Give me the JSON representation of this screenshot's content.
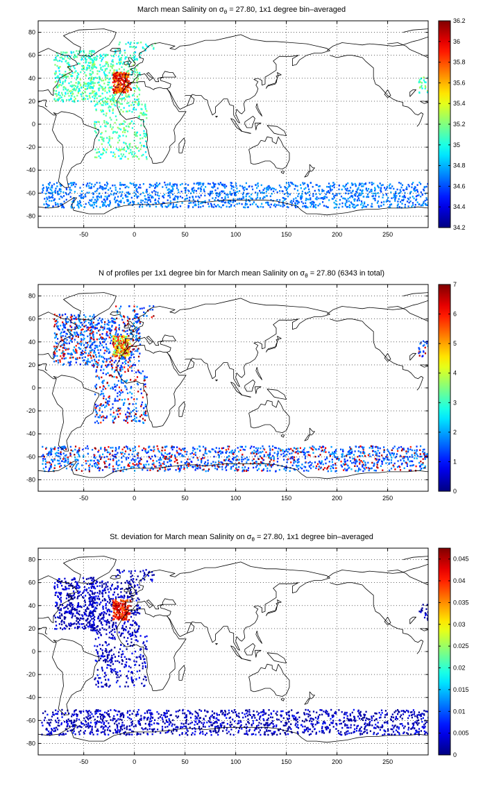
{
  "x_ticks": [
    -50,
    0,
    50,
    100,
    150,
    200,
    250
  ],
  "y_ticks": [
    80,
    60,
    40,
    20,
    0,
    -20,
    -40,
    -60,
    -80
  ],
  "xlim": [
    -95,
    290
  ],
  "ylim": [
    -90,
    90
  ],
  "panels": [
    {
      "title_pre": "March mean Salinity on ",
      "title_sym": "σ",
      "title_sub": "θ",
      "title_post": " = 27.80, 1x1 degree bin–averaged",
      "colorbar_ticks": [
        "36.2",
        "36",
        "35.8",
        "35.6",
        "35.4",
        "35.2",
        "35",
        "34.8",
        "34.6",
        "34.4",
        "34.2"
      ],
      "clim": [
        34.2,
        36.2
      ],
      "colormap": "jet",
      "chart_data": {
        "type": "heatmap",
        "title": "March mean Salinity on σθ = 27.80, 1x1 degree bin–averaged",
        "field": "salinity",
        "regions": [
          {
            "lon": [
              -80,
              -40
            ],
            "lat": [
              20,
              65
            ],
            "value": 34.95
          },
          {
            "lon": [
              -40,
              0
            ],
            "lat": [
              20,
              55
            ],
            "value": 35.1
          },
          {
            "lon": [
              -20,
              -5
            ],
            "lat": [
              30,
              45
            ],
            "value": 35.9
          },
          {
            "lon": [
              -40,
              10
            ],
            "lat": [
              -30,
              20
            ],
            "value": 34.9
          },
          {
            "lon": [
              -90,
              290
            ],
            "lat": [
              -72,
              -50
            ],
            "value": 34.7
          }
        ]
      }
    },
    {
      "title_pre": "N of profiles per 1x1 degree bin for March mean Salinity on ",
      "title_sym": "σ",
      "title_sub": "θ",
      "title_post": " = 27.80 (6343 in total)",
      "colorbar_ticks": [
        "7",
        "6",
        "5",
        "4",
        "3",
        "2",
        "1",
        "0"
      ],
      "clim": [
        0,
        7
      ],
      "colormap": "jet",
      "chart_data": {
        "type": "heatmap",
        "title": "N of profiles per 1x1 degree bin for March mean Salinity on σθ = 27.80 (6343 in total)",
        "field": "profile_count",
        "total": 6343,
        "regions": [
          {
            "lon": [
              -80,
              10
            ],
            "lat": [
              15,
              70
            ],
            "value": 2
          },
          {
            "lon": [
              -20,
              -5
            ],
            "lat": [
              30,
              45
            ],
            "value": 5
          },
          {
            "lon": [
              -40,
              10
            ],
            "lat": [
              -30,
              20
            ],
            "value": 1.5
          },
          {
            "lon": [
              -90,
              290
            ],
            "lat": [
              -72,
              -50
            ],
            "value": 1
          }
        ]
      }
    },
    {
      "title_pre": "St. deviation for March mean Salinity on ",
      "title_sym": "σ",
      "title_sub": "θ",
      "title_post": " = 27.80, 1x1 degree bin–averaged",
      "colorbar_ticks": [
        "0.045",
        "0.04",
        "0.035",
        "0.03",
        "0.025",
        "0.02",
        "0.015",
        "0.01",
        "0.005",
        "0"
      ],
      "clim": [
        0,
        0.0475
      ],
      "colormap": "jet",
      "chart_data": {
        "type": "heatmap",
        "title": "St. deviation for March mean Salinity on σθ = 27.80, 1x1 degree bin–averaged",
        "field": "salinity_std",
        "regions": [
          {
            "lon": [
              -80,
              10
            ],
            "lat": [
              15,
              70
            ],
            "value": 0.005
          },
          {
            "lon": [
              -20,
              -5
            ],
            "lat": [
              30,
              45
            ],
            "value": 0.045
          },
          {
            "lon": [
              -40,
              10
            ],
            "lat": [
              -30,
              20
            ],
            "value": 0.003
          },
          {
            "lon": [
              -90,
              290
            ],
            "lat": [
              -72,
              -50
            ],
            "value": 0.006
          }
        ]
      }
    }
  ]
}
